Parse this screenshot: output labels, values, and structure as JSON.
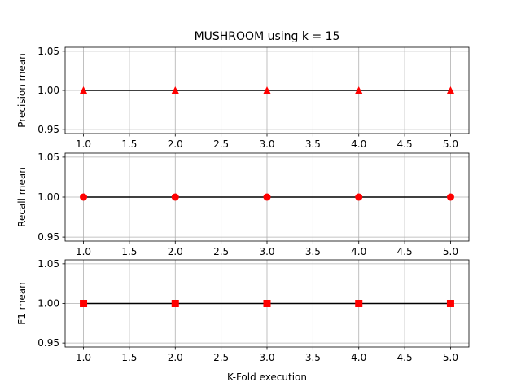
{
  "chart_data": {
    "title": "MUSHROOM using k = 15",
    "xlabel": "K-Fold execution",
    "x_ticks": [
      "1.0",
      "1.5",
      "2.0",
      "2.5",
      "3.0",
      "3.5",
      "4.0",
      "4.5",
      "5.0"
    ],
    "y_ticks": [
      "0.95",
      "1.00",
      "1.05"
    ],
    "grid": true,
    "colors": {
      "line": "#000000",
      "marker": "#ff0000",
      "grid": "#b0b0b0"
    },
    "panels": [
      {
        "type": "line",
        "ylabel": "Precision mean",
        "marker": "triangle",
        "x": [
          1.0,
          2.0,
          3.0,
          4.0,
          5.0
        ],
        "y": [
          1.0,
          1.0,
          1.0,
          1.0,
          1.0
        ],
        "xlim": [
          0.8,
          5.2
        ],
        "ylim": [
          0.945,
          1.055
        ]
      },
      {
        "type": "line",
        "ylabel": "Recall mean",
        "marker": "circle",
        "x": [
          1.0,
          2.0,
          3.0,
          4.0,
          5.0
        ],
        "y": [
          1.0,
          1.0,
          1.0,
          1.0,
          1.0
        ],
        "xlim": [
          0.8,
          5.2
        ],
        "ylim": [
          0.945,
          1.055
        ]
      },
      {
        "type": "line",
        "ylabel": "F1 mean",
        "marker": "square",
        "x": [
          1.0,
          2.0,
          3.0,
          4.0,
          5.0
        ],
        "y": [
          1.0,
          1.0,
          1.0,
          1.0,
          1.0
        ],
        "xlim": [
          0.8,
          5.2
        ],
        "ylim": [
          0.945,
          1.055
        ]
      }
    ]
  }
}
